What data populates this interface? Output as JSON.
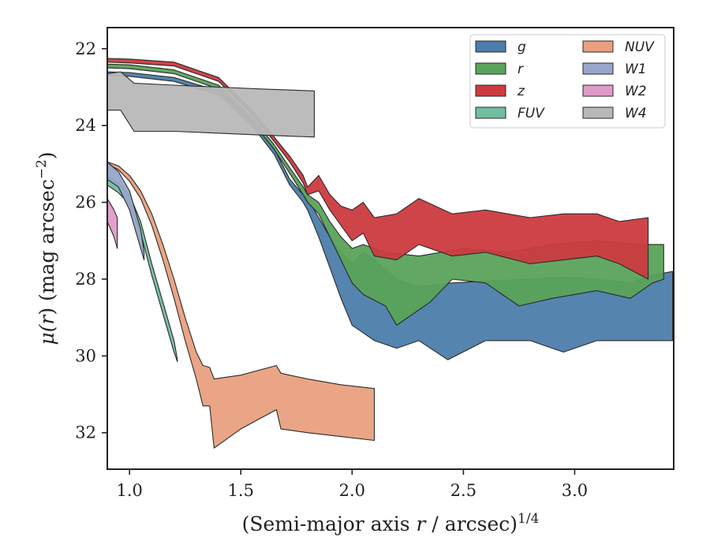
{
  "chart_data": {
    "type": "area",
    "xlabel": {
      "pre": "(Semi-major axis ",
      "var": "r",
      "post": " / arcsec)",
      "sup": "1/4"
    },
    "ylabel": {
      "pre": "μ(",
      "var": "r",
      "post": ") (mag arcsec",
      "sup": "−2",
      "close": ")"
    },
    "xlim": [
      0.9,
      3.445
    ],
    "ylim": [
      32.95,
      21.45
    ],
    "y_inverted": true,
    "grid": false,
    "legend_position": "top-right",
    "xticks": [
      1.0,
      1.5,
      2.0,
      2.5,
      3.0
    ],
    "xtick_labels": [
      "1.0",
      "1.5",
      "2.0",
      "2.5",
      "3.0"
    ],
    "yticks": [
      22,
      24,
      26,
      28,
      30,
      32
    ],
    "ytick_labels": [
      "22",
      "24",
      "26",
      "28",
      "30",
      "32"
    ],
    "series": [
      {
        "name": "g",
        "color": "#4c7dab",
        "upper": [
          [
            0.9,
            22.6
          ],
          [
            1.0,
            22.62
          ],
          [
            1.2,
            22.75
          ],
          [
            1.4,
            23.1
          ],
          [
            1.55,
            23.9
          ],
          [
            1.65,
            24.6
          ],
          [
            1.72,
            25.4
          ],
          [
            1.78,
            25.8
          ],
          [
            1.8,
            25.9
          ],
          [
            1.85,
            26.4
          ],
          [
            1.9,
            26.9
          ],
          [
            1.95,
            27.3
          ],
          [
            2.0,
            27.6
          ],
          [
            2.05,
            27.3
          ],
          [
            2.1,
            27.5
          ],
          [
            2.2,
            28.0
          ],
          [
            2.3,
            28.2
          ],
          [
            2.45,
            28.1
          ],
          [
            2.6,
            28.05
          ],
          [
            2.8,
            28.0
          ],
          [
            2.95,
            27.95
          ],
          [
            3.1,
            28.0
          ],
          [
            3.25,
            28.1
          ],
          [
            3.35,
            27.9
          ],
          [
            3.44,
            27.8
          ]
        ],
        "lower": [
          [
            0.9,
            22.7
          ],
          [
            1.0,
            22.72
          ],
          [
            1.2,
            22.85
          ],
          [
            1.4,
            23.2
          ],
          [
            1.55,
            24.0
          ],
          [
            1.65,
            24.75
          ],
          [
            1.72,
            25.55
          ],
          [
            1.78,
            26.0
          ],
          [
            1.8,
            26.2
          ],
          [
            1.85,
            26.9
          ],
          [
            1.9,
            27.7
          ],
          [
            1.95,
            28.5
          ],
          [
            2.0,
            29.2
          ],
          [
            2.05,
            29.4
          ],
          [
            2.1,
            29.6
          ],
          [
            2.2,
            29.8
          ],
          [
            2.3,
            29.6
          ],
          [
            2.43,
            30.1
          ],
          [
            2.6,
            29.6
          ],
          [
            2.8,
            29.6
          ],
          [
            2.95,
            29.9
          ],
          [
            3.1,
            29.6
          ],
          [
            3.25,
            29.6
          ],
          [
            3.35,
            29.6
          ],
          [
            3.44,
            29.6
          ]
        ]
      },
      {
        "name": "r",
        "color": "#5aa35a",
        "upper": [
          [
            0.9,
            22.4
          ],
          [
            1.0,
            22.42
          ],
          [
            1.2,
            22.55
          ],
          [
            1.4,
            22.95
          ],
          [
            1.55,
            23.8
          ],
          [
            1.65,
            24.5
          ],
          [
            1.72,
            25.1
          ],
          [
            1.78,
            25.6
          ],
          [
            1.8,
            25.8
          ],
          [
            1.85,
            26.0
          ],
          [
            1.9,
            26.5
          ],
          [
            1.95,
            26.9
          ],
          [
            2.0,
            27.2
          ],
          [
            2.05,
            27.1
          ],
          [
            2.15,
            27.3
          ],
          [
            2.3,
            27.4
          ],
          [
            2.5,
            27.2
          ],
          [
            2.7,
            27.3
          ],
          [
            2.9,
            27.1
          ],
          [
            3.1,
            27.0
          ],
          [
            3.3,
            27.1
          ],
          [
            3.4,
            27.1
          ]
        ],
        "lower": [
          [
            0.9,
            22.5
          ],
          [
            1.0,
            22.52
          ],
          [
            1.2,
            22.65
          ],
          [
            1.4,
            23.05
          ],
          [
            1.55,
            23.9
          ],
          [
            1.65,
            24.62
          ],
          [
            1.72,
            25.25
          ],
          [
            1.78,
            25.8
          ],
          [
            1.8,
            26.0
          ],
          [
            1.85,
            26.3
          ],
          [
            1.9,
            26.9
          ],
          [
            1.95,
            27.5
          ],
          [
            2.0,
            28.1
          ],
          [
            2.05,
            28.4
          ],
          [
            2.15,
            28.7
          ],
          [
            2.2,
            29.2
          ],
          [
            2.35,
            28.6
          ],
          [
            2.45,
            28.0
          ],
          [
            2.6,
            28.1
          ],
          [
            2.75,
            28.7
          ],
          [
            2.9,
            28.5
          ],
          [
            3.1,
            28.3
          ],
          [
            3.25,
            28.5
          ],
          [
            3.35,
            28.1
          ],
          [
            3.4,
            28.0
          ]
        ]
      },
      {
        "name": "z",
        "color": "#cc3a3f",
        "upper": [
          [
            0.9,
            22.25
          ],
          [
            1.0,
            22.27
          ],
          [
            1.2,
            22.35
          ],
          [
            1.4,
            22.75
          ],
          [
            1.55,
            23.6
          ],
          [
            1.65,
            24.3
          ],
          [
            1.72,
            24.8
          ],
          [
            1.78,
            25.3
          ],
          [
            1.8,
            25.6
          ],
          [
            1.85,
            25.3
          ],
          [
            1.9,
            25.8
          ],
          [
            1.95,
            26.1
          ],
          [
            2.0,
            26.2
          ],
          [
            2.05,
            26.0
          ],
          [
            2.1,
            26.4
          ],
          [
            2.2,
            26.3
          ],
          [
            2.3,
            25.9
          ],
          [
            2.45,
            26.3
          ],
          [
            2.6,
            26.2
          ],
          [
            2.8,
            26.4
          ],
          [
            2.95,
            26.3
          ],
          [
            3.1,
            26.3
          ],
          [
            3.2,
            26.5
          ],
          [
            3.33,
            26.4
          ]
        ],
        "lower": [
          [
            0.9,
            22.35
          ],
          [
            1.0,
            22.37
          ],
          [
            1.2,
            22.45
          ],
          [
            1.4,
            22.85
          ],
          [
            1.55,
            23.7
          ],
          [
            1.65,
            24.42
          ],
          [
            1.72,
            24.95
          ],
          [
            1.78,
            25.5
          ],
          [
            1.8,
            25.8
          ],
          [
            1.85,
            25.7
          ],
          [
            1.9,
            26.2
          ],
          [
            1.95,
            26.6
          ],
          [
            2.0,
            27.0
          ],
          [
            2.05,
            26.8
          ],
          [
            2.1,
            27.4
          ],
          [
            2.2,
            27.5
          ],
          [
            2.3,
            27.1
          ],
          [
            2.45,
            27.4
          ],
          [
            2.6,
            27.3
          ],
          [
            2.8,
            27.6
          ],
          [
            2.95,
            27.5
          ],
          [
            3.1,
            27.4
          ],
          [
            3.2,
            27.6
          ],
          [
            3.33,
            28.0
          ]
        ]
      },
      {
        "name": "FUV",
        "color": "#72bea0",
        "upper": [
          [
            0.9,
            25.3
          ],
          [
            0.95,
            25.5
          ],
          [
            1.0,
            25.8
          ],
          [
            1.05,
            26.5
          ],
          [
            1.1,
            27.6
          ],
          [
            1.15,
            28.6
          ],
          [
            1.2,
            29.6
          ],
          [
            1.215,
            30.1
          ]
        ],
        "lower": [
          [
            0.9,
            25.55
          ],
          [
            0.95,
            25.75
          ],
          [
            1.0,
            26.05
          ],
          [
            1.05,
            26.8
          ],
          [
            1.1,
            27.9
          ],
          [
            1.15,
            28.9
          ],
          [
            1.2,
            29.9
          ],
          [
            1.215,
            30.15
          ]
        ]
      },
      {
        "name": "NUV",
        "color": "#e9a080",
        "upper": [
          [
            0.9,
            24.95
          ],
          [
            0.95,
            25.05
          ],
          [
            1.0,
            25.3
          ],
          [
            1.05,
            25.7
          ],
          [
            1.1,
            26.3
          ],
          [
            1.15,
            27.1
          ],
          [
            1.2,
            28.0
          ],
          [
            1.25,
            29.0
          ],
          [
            1.3,
            29.9
          ],
          [
            1.33,
            30.25
          ],
          [
            1.36,
            30.3
          ],
          [
            1.38,
            30.6
          ],
          [
            1.5,
            30.5
          ],
          [
            1.66,
            30.25
          ],
          [
            1.68,
            30.45
          ],
          [
            1.8,
            30.6
          ],
          [
            1.95,
            30.75
          ],
          [
            2.1,
            30.85
          ]
        ],
        "lower": [
          [
            0.9,
            25.0
          ],
          [
            0.95,
            25.15
          ],
          [
            1.0,
            25.45
          ],
          [
            1.05,
            25.9
          ],
          [
            1.1,
            26.6
          ],
          [
            1.15,
            27.5
          ],
          [
            1.2,
            28.5
          ],
          [
            1.25,
            29.6
          ],
          [
            1.3,
            30.6
          ],
          [
            1.33,
            31.3
          ],
          [
            1.36,
            31.3
          ],
          [
            1.38,
            32.4
          ],
          [
            1.5,
            31.9
          ],
          [
            1.66,
            31.4
          ],
          [
            1.68,
            31.9
          ],
          [
            1.8,
            32.0
          ],
          [
            1.95,
            32.1
          ],
          [
            2.1,
            32.2
          ]
        ]
      },
      {
        "name": "W1",
        "color": "#97a6c9",
        "upper": [
          [
            0.9,
            24.95
          ],
          [
            0.95,
            25.2
          ],
          [
            1.0,
            25.7
          ],
          [
            1.05,
            26.7
          ],
          [
            1.065,
            27.3
          ]
        ],
        "lower": [
          [
            0.9,
            25.4
          ],
          [
            0.95,
            25.6
          ],
          [
            1.0,
            26.2
          ],
          [
            1.05,
            27.2
          ],
          [
            1.065,
            27.5
          ]
        ]
      },
      {
        "name": "W2",
        "color": "#de9bc7",
        "upper": [
          [
            0.9,
            25.9
          ],
          [
            0.93,
            26.2
          ],
          [
            0.945,
            26.4
          ]
        ],
        "lower": [
          [
            0.9,
            26.5
          ],
          [
            0.93,
            26.9
          ],
          [
            0.945,
            27.2
          ]
        ]
      },
      {
        "name": "W4",
        "color": "#b8b8b8",
        "upper": [
          [
            0.9,
            22.65
          ],
          [
            0.96,
            22.6
          ],
          [
            1.02,
            22.9
          ],
          [
            1.2,
            22.95
          ],
          [
            1.4,
            23.0
          ],
          [
            1.6,
            23.05
          ],
          [
            1.83,
            23.1
          ]
        ],
        "lower": [
          [
            0.9,
            23.6
          ],
          [
            0.96,
            23.6
          ],
          [
            1.02,
            24.15
          ],
          [
            1.2,
            24.15
          ],
          [
            1.4,
            24.2
          ],
          [
            1.6,
            24.25
          ],
          [
            1.83,
            24.3
          ]
        ]
      }
    ],
    "legend_columns": [
      [
        "g",
        "r",
        "z",
        "FUV"
      ],
      [
        "NUV",
        "W1",
        "W2",
        "W4"
      ]
    ]
  }
}
